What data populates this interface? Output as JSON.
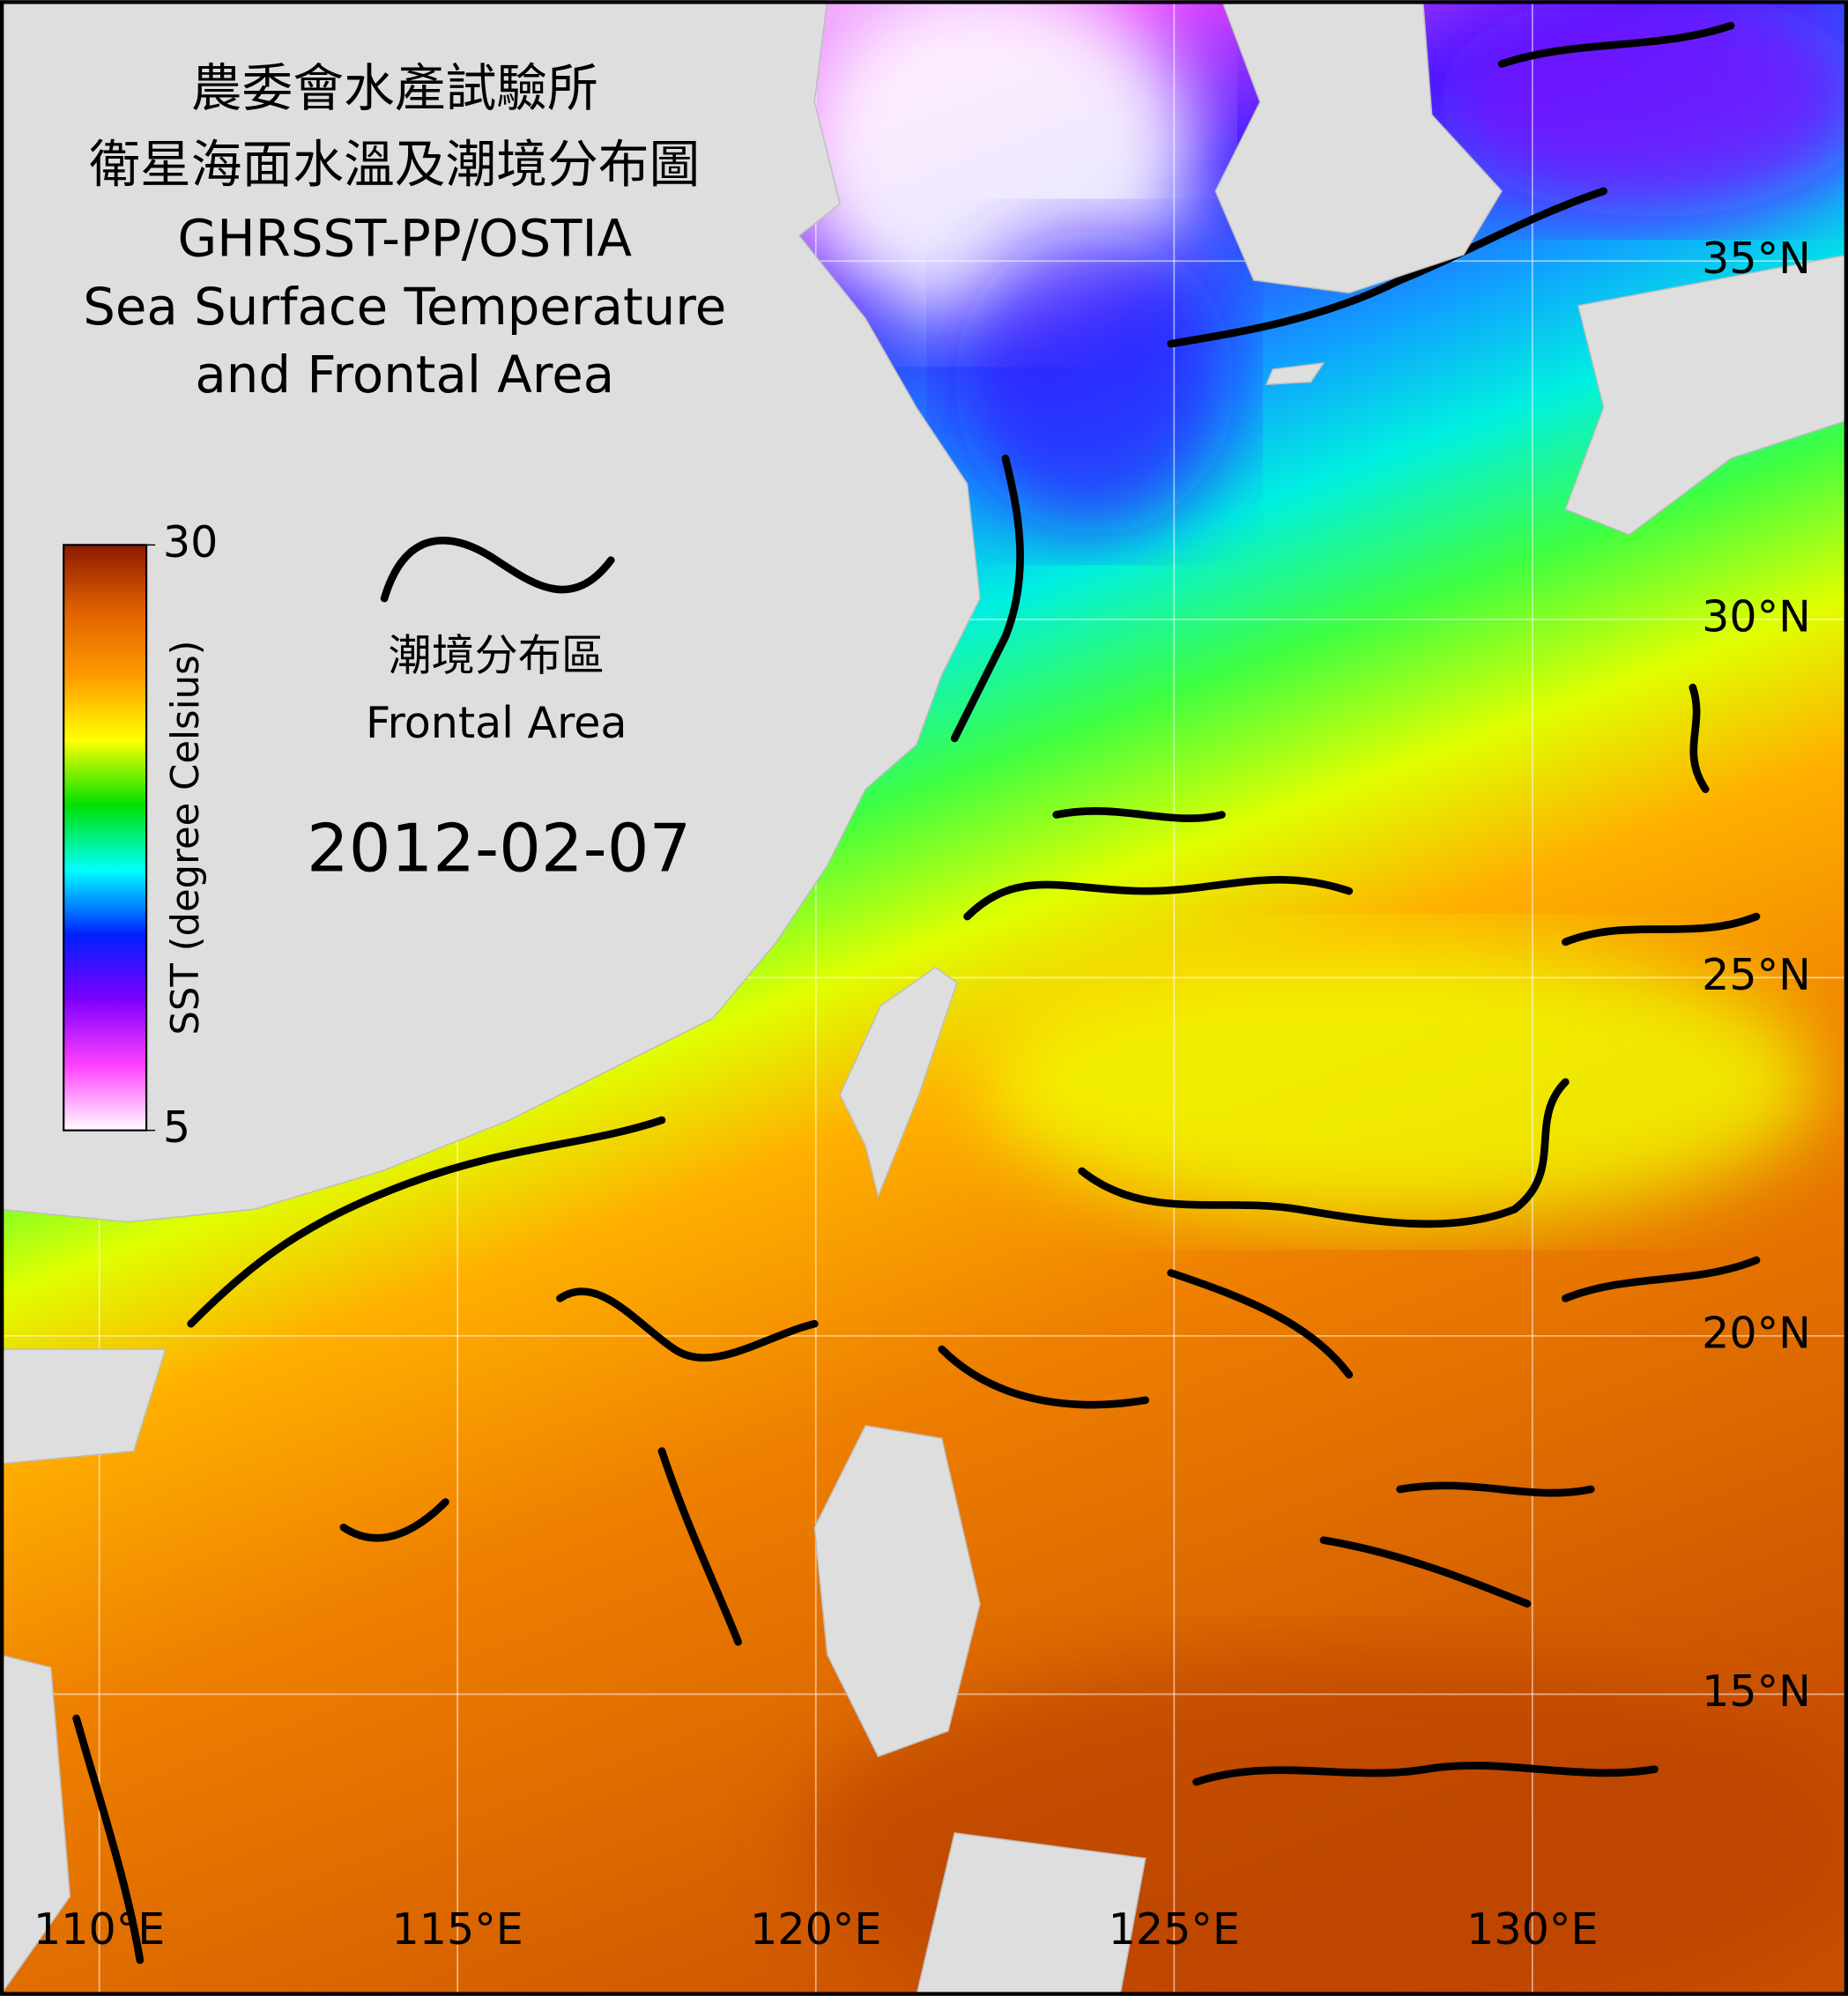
{
  "title": {
    "lines": [
      "農委會水產試驗所",
      "衛星海面水溫及潮境分布圖",
      "GHRSST-PP/OSTIA",
      "Sea Surface Temperature",
      "and Frontal Area"
    ]
  },
  "colorbar": {
    "label": "SST (degree Celsius)",
    "range": [
      5,
      30
    ],
    "ticks": [
      30,
      5
    ],
    "colors": [
      "#ffffff",
      "#ff40ff",
      "#8000ff",
      "#0020ff",
      "#00ffff",
      "#00e000",
      "#ffff00",
      "#ff9900",
      "#e06000",
      "#8b1a00"
    ]
  },
  "legend": {
    "lines": [
      "潮境分布區",
      "Frontal Area"
    ]
  },
  "date": "2012-02-07",
  "map": {
    "lon_ticks": [
      {
        "value": 110,
        "label": "110°E"
      },
      {
        "value": 115,
        "label": "115°E"
      },
      {
        "value": 120,
        "label": "120°E"
      },
      {
        "value": 125,
        "label": "125°E"
      },
      {
        "value": 130,
        "label": "130°E"
      }
    ],
    "lat_ticks": [
      {
        "value": 35,
        "label": "35°N"
      },
      {
        "value": 30,
        "label": "30°N"
      },
      {
        "value": 25,
        "label": "25°N"
      },
      {
        "value": 20,
        "label": "20°N"
      },
      {
        "value": 15,
        "label": "15°N"
      }
    ]
  }
}
